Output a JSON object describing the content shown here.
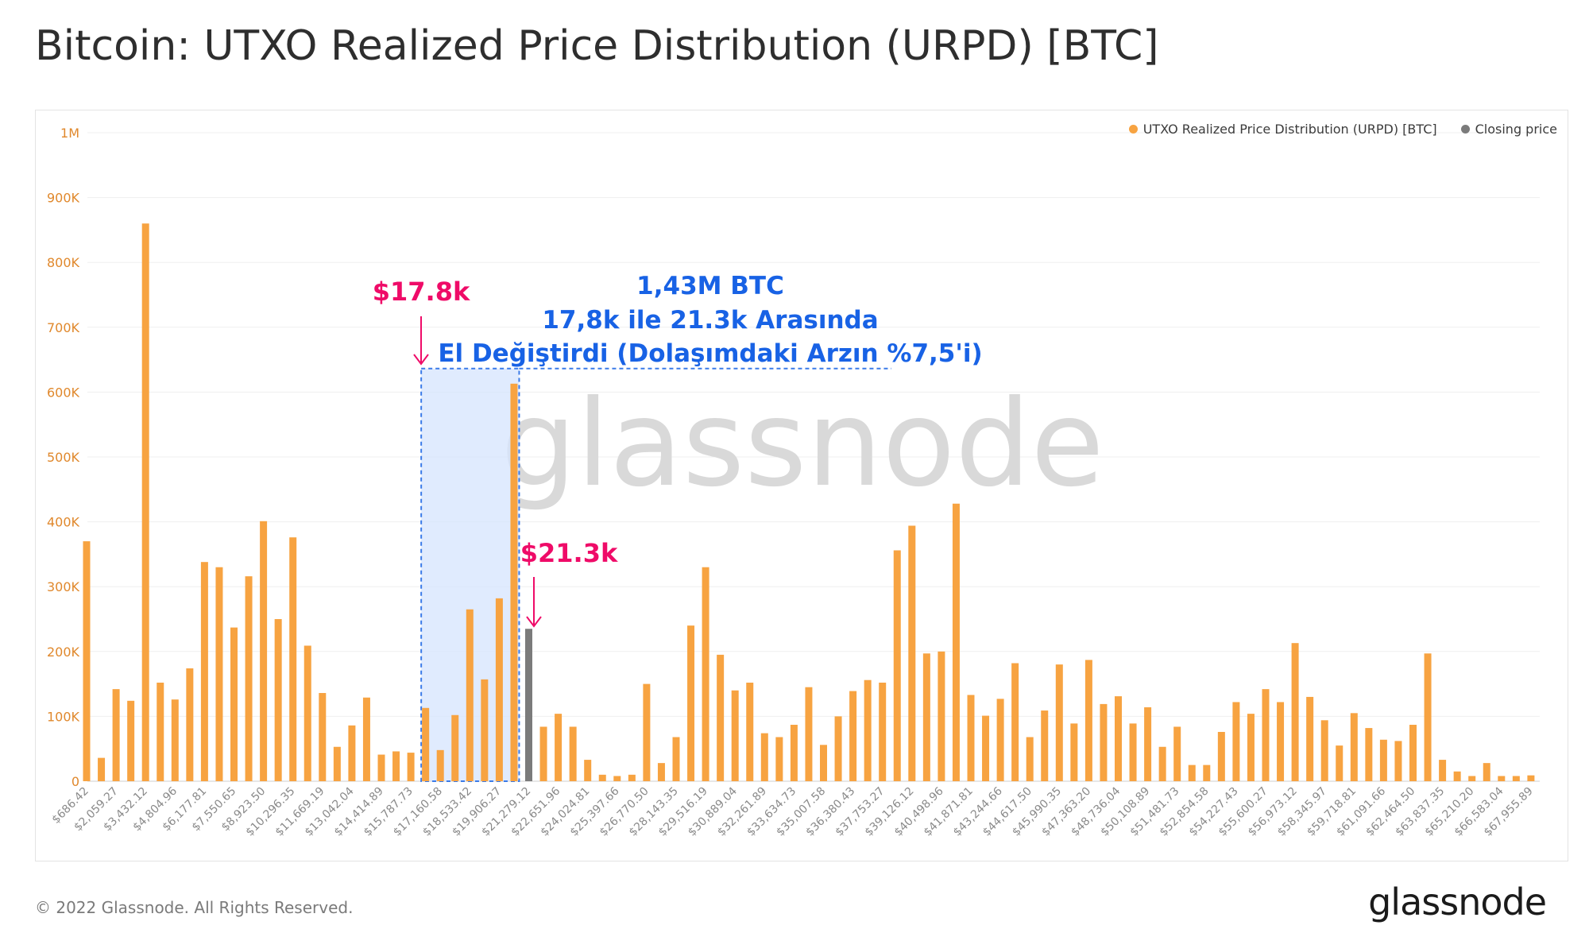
{
  "page": {
    "title": "Bitcoin: UTXO Realized Price Distribution (URPD) [BTC]",
    "copyright": "© 2022 Glassnode. All Rights Reserved.",
    "logo": "glassnode",
    "watermark": "glassnode"
  },
  "colors": {
    "urpd_bar": "#f7a341",
    "closing_bar": "#7b7b7b",
    "highlight_fill": "#d6e4fd",
    "highlight_border": "#3b7be8",
    "annotation_red": "#ef0b68",
    "annotation_blue": "#1862e5",
    "axis_text": "#e0882c",
    "watermark": "#d9d9d9"
  },
  "chart_data": {
    "type": "bar",
    "title": "Bitcoin: UTXO Realized Price Distribution (URPD) [BTC]",
    "ylim": [
      0,
      1000000
    ],
    "yticks": [
      "0",
      "100K",
      "200K",
      "300K",
      "400K",
      "500K",
      "600K",
      "700K",
      "800K",
      "900K",
      "1M"
    ],
    "grid": true,
    "legend_position": "top-right",
    "legend": [
      {
        "label": "UTXO Realized Price Distribution (URPD) [BTC]",
        "color": "#f7a341"
      },
      {
        "label": "Closing price",
        "color": "#7b7b7b"
      }
    ],
    "tick_labels": [
      "$686.42",
      "$2,059.27",
      "$3,432.12",
      "$4,804.96",
      "$6,177.81",
      "$7,550.65",
      "$8,923.50",
      "$10,296.35",
      "$11,669.19",
      "$13,042.04",
      "$14,414.89",
      "$15,787.73",
      "$17,160.58",
      "$18,533.42",
      "$19,906.27",
      "$21,279.12",
      "$22,651.96",
      "$24,024.81",
      "$25,397.66",
      "$26,770.50",
      "$28,143.35",
      "$29,516.19",
      "$30,889.04",
      "$32,261.89",
      "$33,634.73",
      "$35,007.58",
      "$36,380.43",
      "$37,753.27",
      "$39,126.12",
      "$40,498.96",
      "$41,871.81",
      "$43,244.66",
      "$44,617.50",
      "$45,990.35",
      "$47,363.20",
      "$48,736.04",
      "$50,108.89",
      "$51,481.73",
      "$52,854.58",
      "$54,227.43",
      "$55,600.27",
      "$56,973.12",
      "$58,345.97",
      "$59,718.81",
      "$61,091.66",
      "$62,464.50",
      "$63,837.35",
      "$65,210.20",
      "$66,583.04",
      "$67,955.89"
    ],
    "values": [
      370000,
      36000,
      142000,
      124000,
      860000,
      152000,
      126000,
      174000,
      338000,
      330000,
      237000,
      316000,
      401000,
      250000,
      376000,
      209000,
      136000,
      53000,
      86000,
      129000,
      41000,
      46000,
      44000,
      113000,
      48000,
      102000,
      265000,
      157000,
      282000,
      613000,
      235000,
      84000,
      104000,
      84000,
      33000,
      10000,
      8000,
      10000,
      150000,
      28000,
      68000,
      240000,
      330000,
      195000,
      140000,
      152000,
      74000,
      68000,
      87000,
      145000,
      56000,
      100000,
      139000,
      156000,
      152000,
      356000,
      394000,
      197000,
      200000,
      428000,
      133000,
      101000,
      127000,
      182000,
      68000,
      109000,
      180000,
      89000,
      187000,
      119000,
      131000,
      89000,
      114000,
      53000,
      84000,
      25000,
      25000,
      76000,
      122000,
      104000,
      142000,
      122000,
      213000,
      130000,
      94000,
      55000,
      105000,
      82000,
      64000,
      62000,
      87000,
      197000,
      33000,
      15000,
      8000,
      28000,
      8000,
      8000,
      9000
    ],
    "closing_price_index": 30,
    "highlight_range": {
      "from_index": 23,
      "to_index": 29
    },
    "annotations": {
      "left_price": "$17.8k",
      "right_price": "$21.3k",
      "box_line1": "1,43M BTC",
      "box_line2": "17,8k ile 21.3k Arasında",
      "box_line3": "El Değiştirdi (Dolaşımdaki Arzın %7,5'i)"
    }
  }
}
